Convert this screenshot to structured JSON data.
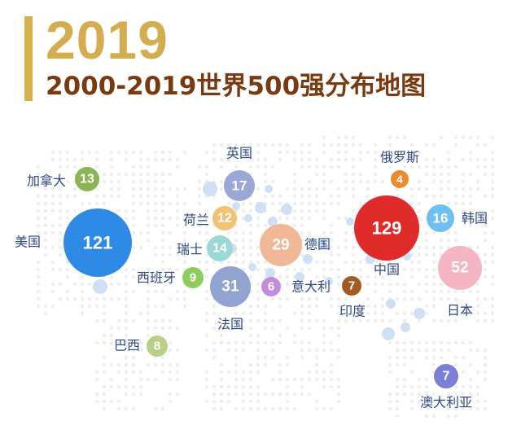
{
  "header": {
    "year": "2019",
    "title": "2000-2019世界500强分布地图"
  },
  "colors": {
    "accent": "#d6b24d",
    "title": "#7a3a10",
    "label": "#2e4a86",
    "map_dots": "#eeeeee",
    "connector_dots": "#cfe0f5"
  },
  "chart_data": {
    "type": "bubble-map",
    "metric": "Fortune Global 500 companies",
    "points": [
      {
        "country": "美国",
        "value": 121,
        "color": "#2f8ae5"
      },
      {
        "country": "加拿大",
        "value": 13,
        "color": "#8bb455"
      },
      {
        "country": "巴西",
        "value": 8,
        "color": "#b9cf86"
      },
      {
        "country": "英国",
        "value": 17,
        "color": "#9aa8d6"
      },
      {
        "country": "荷兰",
        "value": 12,
        "color": "#f2c172"
      },
      {
        "country": "瑞士",
        "value": 14,
        "color": "#9ad9d6"
      },
      {
        "country": "西班牙",
        "value": 9,
        "color": "#8dcc5d"
      },
      {
        "country": "法国",
        "value": 31,
        "color": "#93a3d0"
      },
      {
        "country": "德国",
        "value": 29,
        "color": "#f0b896"
      },
      {
        "country": "意大利",
        "value": 6,
        "color": "#c48ddc"
      },
      {
        "country": "印度",
        "value": 7,
        "color": "#a35b22"
      },
      {
        "country": "俄罗斯",
        "value": 4,
        "color": "#ef8a2c"
      },
      {
        "country": "中国",
        "value": 129,
        "color": "#e02b2b"
      },
      {
        "country": "韩国",
        "value": 16,
        "color": "#6ebff2"
      },
      {
        "country": "日本",
        "value": 52,
        "color": "#f6b5c3"
      },
      {
        "country": "澳大利亚",
        "value": 7,
        "color": "#7c7fd8"
      }
    ]
  }
}
